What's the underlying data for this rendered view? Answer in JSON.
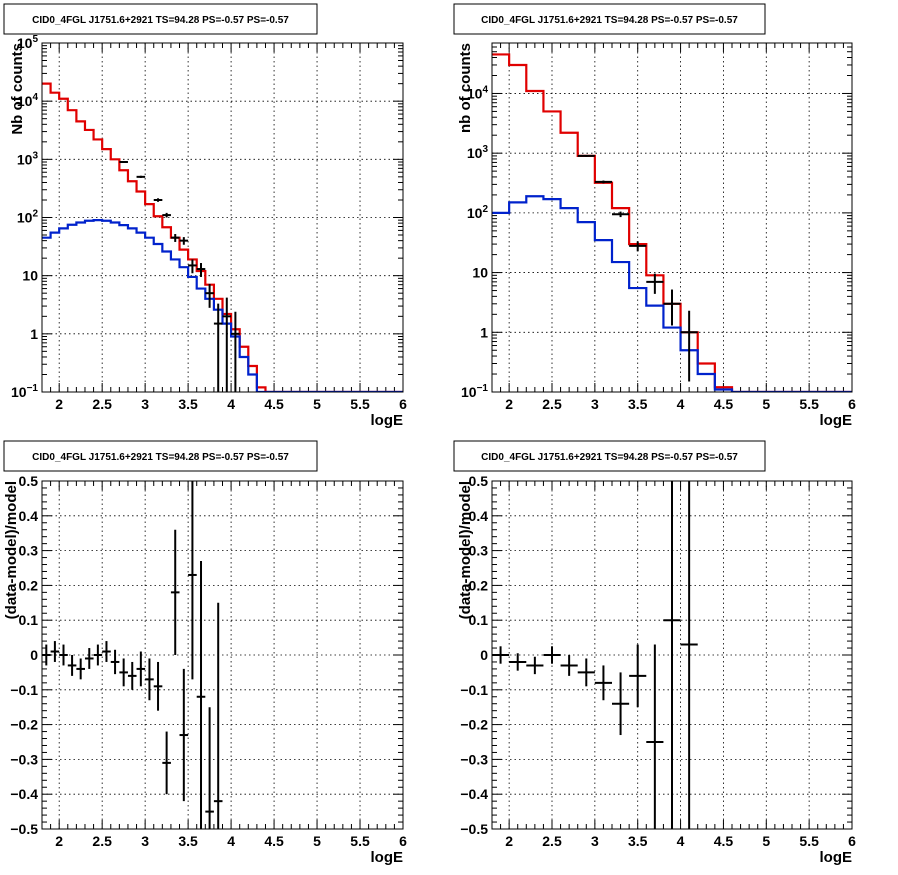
{
  "colors": {
    "data": "#000000",
    "total_model": "#e00000",
    "background_model": "#0022cc",
    "grid": "#000000"
  },
  "chart_data": [
    {
      "type": "line",
      "title": "CID0_4FGL J1751.6+2921 TS=94.28 PS=-0.57 PS=-0.57",
      "xlabel": "logE",
      "ylabel": "Nb of counts",
      "xlim": [
        1.8,
        6.0
      ],
      "ylim": [
        0.1,
        100000
      ],
      "yscale": "log",
      "grid": true,
      "xticks": [
        2,
        2.5,
        3,
        3.5,
        4,
        4.5,
        5,
        5.5,
        6
      ],
      "xtick_labels": [
        "2",
        "2.5",
        "3",
        "3.5",
        "4",
        "4.5",
        "5",
        "5.5",
        "6"
      ],
      "yticks": [
        0.1,
        1,
        10,
        100,
        1000,
        10000,
        100000
      ],
      "ytick_labels": [
        {
          "base": "10",
          "exp": "−1"
        },
        {
          "base": "1",
          "exp": ""
        },
        {
          "base": "10",
          "exp": ""
        },
        {
          "base": "10",
          "exp": "2"
        },
        {
          "base": "10",
          "exp": "3"
        },
        {
          "base": "10",
          "exp": "4"
        },
        {
          "base": "10",
          "exp": "5"
        }
      ],
      "bin_edges": [
        1.8,
        1.9,
        2.0,
        2.1,
        2.2,
        2.3,
        2.4,
        2.5,
        2.6,
        2.7,
        2.8,
        2.9,
        3.0,
        3.1,
        3.2,
        3.3,
        3.4,
        3.5,
        3.6,
        3.7,
        3.8,
        3.9,
        4.0,
        4.1,
        4.2,
        4.3,
        4.4,
        4.5,
        4.6,
        4.7,
        4.8,
        4.9,
        5.0,
        5.1,
        5.2,
        5.3,
        5.4,
        5.5,
        5.6,
        5.7,
        5.8,
        5.9,
        6.0
      ],
      "series": [
        {
          "name": "",
          "style": "step",
          "color": "#e00000",
          "values": [
            20000,
            14000,
            11000,
            7000,
            4500,
            3200,
            2200,
            1500,
            1000,
            650,
            420,
            280,
            170,
            105,
            68,
            45,
            28,
            19,
            12,
            7,
            4,
            2.2,
            1.2,
            0.6,
            0.28,
            0.12,
            0.1,
            0.1,
            0.1,
            0.1,
            0.1,
            0.1,
            0.1,
            0.1,
            0.1,
            0.1,
            0.1,
            0.1,
            0.1,
            0.1,
            0.1,
            0.1
          ]
        },
        {
          "name": "",
          "style": "step",
          "color": "#0022cc",
          "values": [
            45,
            55,
            65,
            75,
            82,
            88,
            90,
            88,
            82,
            74,
            65,
            55,
            45,
            35,
            26,
            19,
            14,
            9.5,
            6,
            4,
            2.6,
            1.5,
            0.9,
            0.4,
            0.2,
            0.1,
            0.1,
            0.1,
            0.1,
            0.1,
            0.1,
            0.1,
            0.1,
            0.1,
            0.1,
            0.1,
            0.1,
            0.1,
            0.1,
            0.1,
            0.1,
            0.1
          ]
        },
        {
          "name": "",
          "style": "errorbar",
          "color": "#000000",
          "x": [
            2.75,
            2.95,
            3.15,
            3.25,
            3.35,
            3.45,
            3.55,
            3.65,
            3.75,
            3.85,
            3.95,
            4.05
          ],
          "y": [
            900,
            500,
            200,
            110,
            45,
            40,
            15,
            13,
            5,
            1.5,
            2,
            1
          ],
          "xerr": 0.05,
          "yerr_low": [
            30,
            22,
            14,
            10,
            7,
            6,
            4,
            3.5,
            2.2,
            1.4,
            1.9,
            0.95
          ],
          "yerr_high": [
            30,
            22,
            14,
            10,
            7,
            6,
            4,
            3.5,
            2.2,
            1.8,
            2.2,
            1.4
          ]
        }
      ]
    },
    {
      "type": "line",
      "title": "CID0_4FGL J1751.6+2921 TS=94.28 PS=-0.57 PS=-0.57",
      "xlabel": "logE",
      "ylabel": "nb of counts",
      "xlim": [
        1.8,
        6.0
      ],
      "ylim": [
        0.1,
        70000
      ],
      "yscale": "log",
      "grid": true,
      "xticks": [
        2,
        2.5,
        3,
        3.5,
        4,
        4.5,
        5,
        5.5,
        6
      ],
      "xtick_labels": [
        "2",
        "2.5",
        "3",
        "3.5",
        "4",
        "4.5",
        "5",
        "5.5",
        "6"
      ],
      "yticks": [
        0.1,
        1,
        10,
        100,
        1000,
        10000
      ],
      "ytick_labels": [
        {
          "base": "10",
          "exp": "−1"
        },
        {
          "base": "1",
          "exp": ""
        },
        {
          "base": "10",
          "exp": ""
        },
        {
          "base": "10",
          "exp": "2"
        },
        {
          "base": "10",
          "exp": "3"
        },
        {
          "base": "10",
          "exp": "4"
        }
      ],
      "bin_edges": [
        1.8,
        2.0,
        2.2,
        2.4,
        2.6,
        2.8,
        3.0,
        3.2,
        3.4,
        3.6,
        3.8,
        4.0,
        4.2,
        4.4,
        4.6,
        4.8,
        5.0,
        5.2,
        5.4,
        5.6,
        5.8,
        6.0
      ],
      "series": [
        {
          "name": "",
          "style": "step",
          "color": "#e00000",
          "values": [
            45000,
            30000,
            11000,
            5000,
            2200,
            900,
            320,
            120,
            30,
            9,
            3,
            1,
            0.3,
            0.12,
            0.1,
            0.1,
            0.1,
            0.1,
            0.1,
            0.1,
            0.1
          ]
        },
        {
          "name": "",
          "style": "step",
          "color": "#0022cc",
          "values": [
            100,
            150,
            190,
            170,
            120,
            70,
            35,
            15,
            5.5,
            2.8,
            1.2,
            0.5,
            0.2,
            0.11,
            0.1,
            0.1,
            0.1,
            0.1,
            0.1,
            0.1,
            0.1
          ]
        },
        {
          "name": "",
          "style": "errorbar",
          "color": "#000000",
          "x": [
            2.9,
            3.1,
            3.3,
            3.5,
            3.7,
            3.9,
            4.1
          ],
          "y": [
            900,
            330,
            95,
            28,
            7,
            3,
            1
          ],
          "xerr": 0.1,
          "yerr_low": [
            30,
            18,
            10,
            5.3,
            2.6,
            1.7,
            0.85
          ],
          "yerr_high": [
            30,
            18,
            10,
            5.3,
            2.6,
            2.2,
            1.3
          ]
        }
      ]
    },
    {
      "type": "scatter",
      "title": "CID0_4FGL J1751.6+2921 TS=94.28 PS=-0.57 PS=-0.57",
      "xlabel": "logE",
      "ylabel": "(data-model)/model",
      "xlim": [
        1.8,
        6.0
      ],
      "ylim": [
        -0.5,
        0.5
      ],
      "yscale": "linear",
      "grid": true,
      "xticks": [
        2,
        2.5,
        3,
        3.5,
        4,
        4.5,
        5,
        5.5,
        6
      ],
      "xtick_labels": [
        "2",
        "2.5",
        "3",
        "3.5",
        "4",
        "4.5",
        "5",
        "5.5",
        "6"
      ],
      "yticks": [
        -0.5,
        -0.4,
        -0.3,
        -0.2,
        -0.1,
        0,
        0.1,
        0.2,
        0.3,
        0.4,
        0.5
      ],
      "ytick_labels": [
        "−0.5",
        "−0.4",
        "−0.3",
        "−0.2",
        "−0.1",
        "0",
        "0.1",
        "0.2",
        "0.3",
        "0.4",
        "0.5"
      ],
      "series": [
        {
          "name": "",
          "style": "errorbar",
          "color": "#000000",
          "x": [
            1.85,
            1.95,
            2.05,
            2.15,
            2.25,
            2.35,
            2.45,
            2.55,
            2.65,
            2.75,
            2.85,
            2.95,
            3.05,
            3.15,
            3.25,
            3.35,
            3.45,
            3.55,
            3.65,
            3.75,
            3.85
          ],
          "y": [
            0.0,
            0.01,
            0.0,
            -0.03,
            -0.04,
            -0.01,
            0.0,
            0.01,
            -0.02,
            -0.05,
            -0.06,
            -0.04,
            -0.07,
            -0.09,
            -0.31,
            0.18,
            -0.23,
            0.23,
            -0.12,
            -0.45,
            -0.42
          ],
          "xerr": 0.05,
          "yerr": [
            0.03,
            0.03,
            0.03,
            0.03,
            0.03,
            0.03,
            0.03,
            0.03,
            0.035,
            0.04,
            0.04,
            0.05,
            0.06,
            0.07,
            0.09,
            0.18,
            0.19,
            0.3,
            0.39,
            0.3,
            0.57
          ]
        }
      ]
    },
    {
      "type": "scatter",
      "title": "CID0_4FGL J1751.6+2921 TS=94.28 PS=-0.57 PS=-0.57",
      "xlabel": "logE",
      "ylabel": "(data-model)/model",
      "xlim": [
        1.8,
        6.0
      ],
      "ylim": [
        -0.5,
        0.5
      ],
      "yscale": "linear",
      "grid": true,
      "xticks": [
        2,
        2.5,
        3,
        3.5,
        4,
        4.5,
        5,
        5.5,
        6
      ],
      "xtick_labels": [
        "2",
        "2.5",
        "3",
        "3.5",
        "4",
        "4.5",
        "5",
        "5.5",
        "6"
      ],
      "yticks": [
        -0.5,
        -0.4,
        -0.3,
        -0.2,
        -0.1,
        0,
        0.1,
        0.2,
        0.3,
        0.4,
        0.5
      ],
      "ytick_labels": [
        "−0.5",
        "−0.4",
        "−0.3",
        "−0.2",
        "−0.1",
        "0",
        "0.1",
        "0.2",
        "0.3",
        "0.4",
        "0.5"
      ],
      "series": [
        {
          "name": "",
          "style": "errorbar",
          "color": "#000000",
          "x": [
            1.9,
            2.1,
            2.3,
            2.5,
            2.7,
            2.9,
            3.1,
            3.3,
            3.5,
            3.7,
            3.9,
            4.1
          ],
          "y": [
            0.0,
            -0.02,
            -0.03,
            0.0,
            -0.03,
            -0.05,
            -0.08,
            -0.14,
            -0.06,
            -0.25,
            0.1,
            0.03
          ],
          "xerr": 0.1,
          "yerr": [
            0.025,
            0.025,
            0.025,
            0.025,
            0.03,
            0.04,
            0.05,
            0.09,
            0.09,
            0.28,
            0.6,
            0.9
          ]
        }
      ]
    }
  ]
}
